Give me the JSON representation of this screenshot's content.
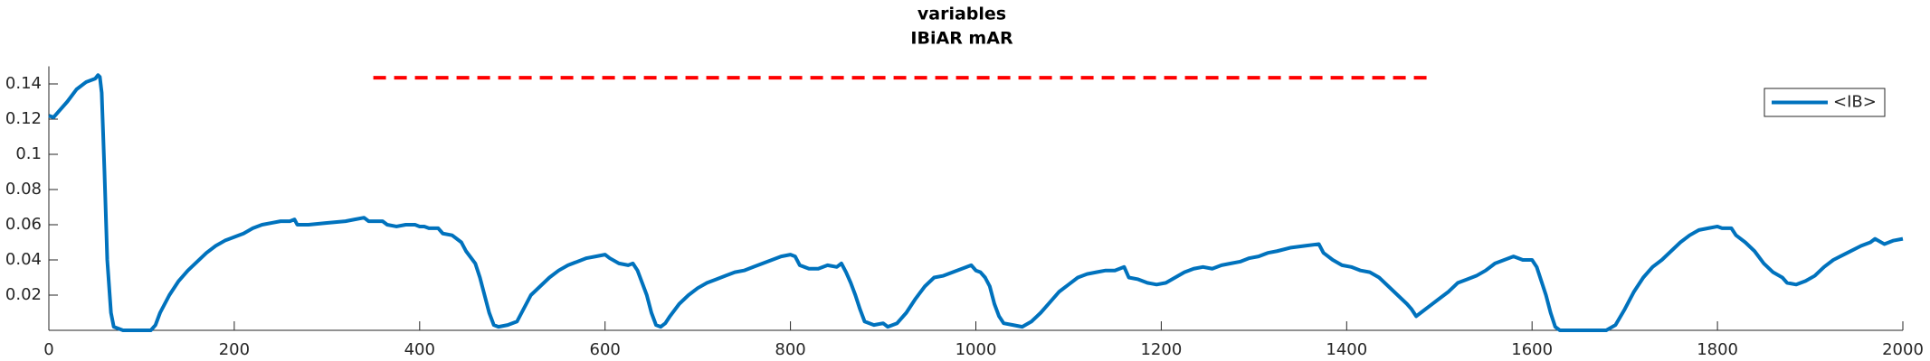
{
  "chart_data": {
    "type": "line",
    "title": [
      "variables",
      "IBiAR mAR"
    ],
    "xlim": [
      0,
      2000
    ],
    "xticks": [
      0,
      200,
      400,
      600,
      800,
      1000,
      1200,
      1400,
      1600,
      1800,
      2000
    ],
    "ylim": [
      0,
      0.15
    ],
    "yticks": [
      0.02,
      0.04,
      0.06,
      0.08,
      0.1,
      0.12,
      0.14
    ],
    "legend": "upper right",
    "series": [
      {
        "name": "<IB>",
        "color": "#0072bd",
        "style": "solid",
        "x": [
          0,
          5,
          10,
          20,
          30,
          40,
          50,
          53,
          55,
          57,
          60,
          63,
          67,
          70,
          80,
          110,
          115,
          120,
          130,
          140,
          150,
          160,
          170,
          180,
          190,
          200,
          210,
          220,
          230,
          240,
          250,
          260,
          265,
          268,
          280,
          300,
          320,
          330,
          340,
          345,
          360,
          365,
          375,
          385,
          395,
          400,
          405,
          410,
          420,
          425,
          435,
          445,
          450,
          460,
          465,
          470,
          475,
          480,
          485,
          495,
          505,
          510,
          520,
          530,
          540,
          550,
          560,
          570,
          580,
          590,
          600,
          605,
          615,
          625,
          630,
          635,
          640,
          645,
          650,
          655,
          660,
          665,
          670,
          680,
          690,
          700,
          710,
          720,
          730,
          740,
          750,
          760,
          770,
          780,
          790,
          800,
          805,
          810,
          820,
          830,
          840,
          850,
          855,
          860,
          865,
          870,
          875,
          880,
          890,
          900,
          905,
          915,
          925,
          935,
          945,
          955,
          965,
          975,
          985,
          995,
          1000,
          1005,
          1010,
          1015,
          1020,
          1025,
          1030,
          1040,
          1050,
          1060,
          1070,
          1080,
          1090,
          1100,
          1110,
          1120,
          1130,
          1140,
          1150,
          1160,
          1165,
          1175,
          1185,
          1195,
          1205,
          1215,
          1225,
          1235,
          1245,
          1255,
          1265,
          1275,
          1285,
          1295,
          1305,
          1315,
          1325,
          1340,
          1355,
          1370,
          1375,
          1385,
          1395,
          1405,
          1415,
          1425,
          1435,
          1445,
          1455,
          1465,
          1470,
          1475,
          1480,
          1490,
          1500,
          1510,
          1520,
          1530,
          1540,
          1550,
          1560,
          1570,
          1580,
          1590,
          1600,
          1605,
          1610,
          1615,
          1620,
          1625,
          1630,
          1680,
          1690,
          1700,
          1710,
          1720,
          1730,
          1740,
          1750,
          1760,
          1770,
          1780,
          1790,
          1800,
          1805,
          1815,
          1820,
          1830,
          1840,
          1850,
          1860,
          1870,
          1875,
          1885,
          1895,
          1905,
          1915,
          1925,
          1940,
          1955,
          1965,
          1970,
          1980,
          1990,
          2000
        ],
        "values": [
          0.122,
          0.121,
          0.124,
          0.13,
          0.137,
          0.141,
          0.143,
          0.145,
          0.144,
          0.135,
          0.09,
          0.04,
          0.01,
          0.002,
          0.0,
          0.0,
          0.003,
          0.01,
          0.02,
          0.028,
          0.034,
          0.039,
          0.044,
          0.048,
          0.051,
          0.053,
          0.055,
          0.058,
          0.06,
          0.061,
          0.062,
          0.062,
          0.063,
          0.06,
          0.06,
          0.061,
          0.062,
          0.063,
          0.064,
          0.062,
          0.062,
          0.06,
          0.059,
          0.06,
          0.06,
          0.059,
          0.059,
          0.058,
          0.058,
          0.055,
          0.054,
          0.05,
          0.045,
          0.038,
          0.03,
          0.02,
          0.01,
          0.003,
          0.002,
          0.003,
          0.005,
          0.01,
          0.02,
          0.025,
          0.03,
          0.034,
          0.037,
          0.039,
          0.041,
          0.042,
          0.043,
          0.041,
          0.038,
          0.037,
          0.038,
          0.034,
          0.027,
          0.02,
          0.01,
          0.003,
          0.002,
          0.004,
          0.008,
          0.015,
          0.02,
          0.024,
          0.027,
          0.029,
          0.031,
          0.033,
          0.034,
          0.036,
          0.038,
          0.04,
          0.042,
          0.043,
          0.042,
          0.037,
          0.035,
          0.035,
          0.037,
          0.036,
          0.038,
          0.033,
          0.027,
          0.02,
          0.012,
          0.005,
          0.003,
          0.004,
          0.002,
          0.004,
          0.01,
          0.018,
          0.025,
          0.03,
          0.031,
          0.033,
          0.035,
          0.037,
          0.034,
          0.033,
          0.03,
          0.025,
          0.015,
          0.008,
          0.004,
          0.003,
          0.002,
          0.005,
          0.01,
          0.016,
          0.022,
          0.026,
          0.03,
          0.032,
          0.033,
          0.034,
          0.034,
          0.036,
          0.03,
          0.029,
          0.027,
          0.026,
          0.027,
          0.03,
          0.033,
          0.035,
          0.036,
          0.035,
          0.037,
          0.038,
          0.039,
          0.041,
          0.042,
          0.044,
          0.045,
          0.047,
          0.048,
          0.049,
          0.044,
          0.04,
          0.037,
          0.036,
          0.034,
          0.033,
          0.03,
          0.025,
          0.02,
          0.015,
          0.012,
          0.008,
          0.01,
          0.014,
          0.018,
          0.022,
          0.027,
          0.029,
          0.031,
          0.034,
          0.038,
          0.04,
          0.042,
          0.04,
          0.04,
          0.036,
          0.028,
          0.02,
          0.01,
          0.002,
          0.0,
          0.0,
          0.003,
          0.012,
          0.022,
          0.03,
          0.036,
          0.04,
          0.045,
          0.05,
          0.054,
          0.057,
          0.058,
          0.059,
          0.058,
          0.058,
          0.054,
          0.05,
          0.045,
          0.038,
          0.033,
          0.03,
          0.027,
          0.026,
          0.028,
          0.031,
          0.036,
          0.04,
          0.044,
          0.048,
          0.05,
          0.052,
          0.049,
          0.051,
          0.052
        ]
      },
      {
        "color": "#ff0000",
        "style": "dashed",
        "x": [
          350,
          1490
        ],
        "values": [
          0.1435,
          0.1435
        ]
      }
    ]
  }
}
